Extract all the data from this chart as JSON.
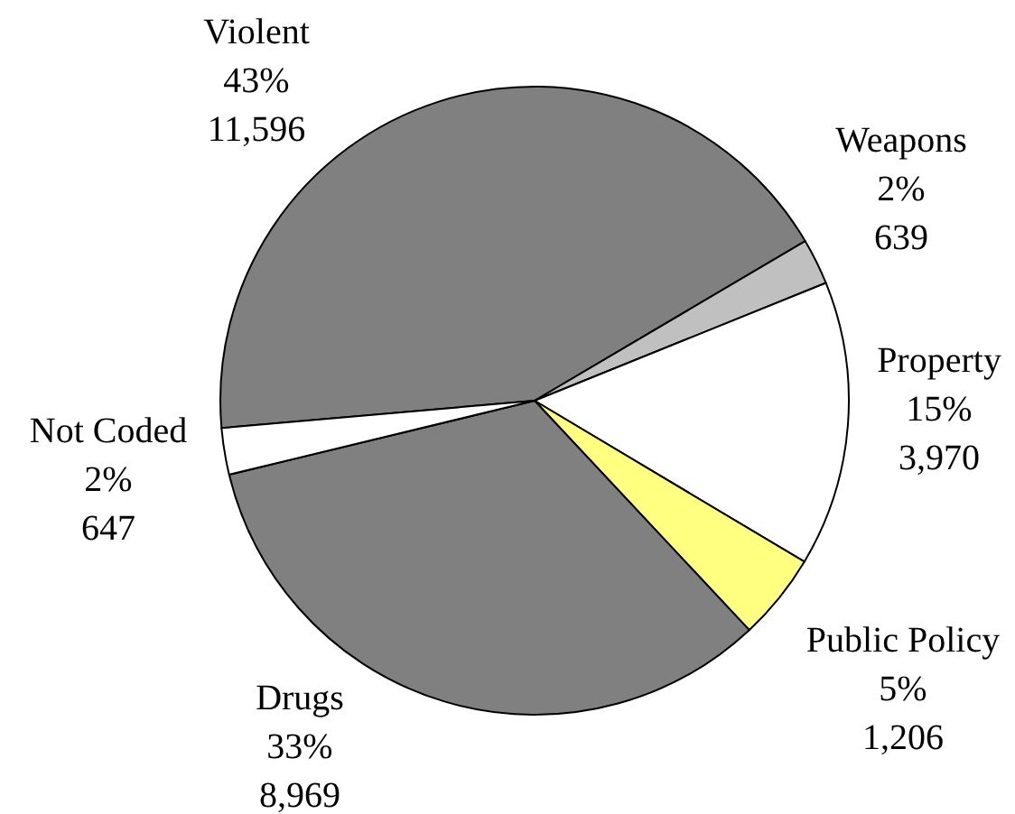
{
  "chart_data": {
    "type": "pie",
    "categories": [
      "Violent",
      "Weapons",
      "Property",
      "Public Policy",
      "Drugs",
      "Not Coded"
    ],
    "values": [
      11596,
      639,
      3970,
      1206,
      8969,
      647
    ],
    "colors": [
      "#808080",
      "#c0c0c0",
      "#ffffff",
      "#ffff80",
      "#808080",
      "#ffffff"
    ],
    "value_labels": [
      "43%\n11,596",
      "2%\n639",
      "15%\n3,970",
      "5%\n1,206",
      "33%\n8,969",
      "2%\n647"
    ]
  }
}
